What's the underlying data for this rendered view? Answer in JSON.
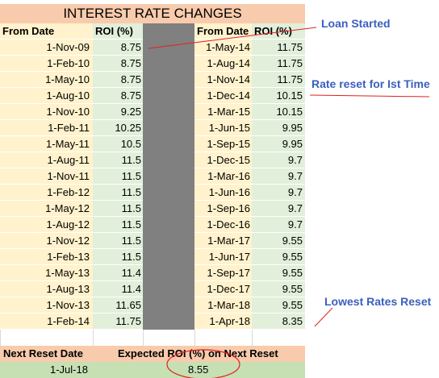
{
  "title": "INTEREST RATE CHANGES",
  "headers": {
    "from_date": "From Date",
    "roi": "ROI (%)"
  },
  "left_rows": [
    {
      "date": "1-Nov-09",
      "roi": "8.75"
    },
    {
      "date": "1-Feb-10",
      "roi": "8.75"
    },
    {
      "date": "1-May-10",
      "roi": "8.75"
    },
    {
      "date": "1-Aug-10",
      "roi": "8.75"
    },
    {
      "date": "1-Nov-10",
      "roi": "9.25"
    },
    {
      "date": "1-Feb-11",
      "roi": "10.25"
    },
    {
      "date": "1-May-11",
      "roi": "10.5"
    },
    {
      "date": "1-Aug-11",
      "roi": "11.5"
    },
    {
      "date": "1-Nov-11",
      "roi": "11.5"
    },
    {
      "date": "1-Feb-12",
      "roi": "11.5"
    },
    {
      "date": "1-May-12",
      "roi": "11.5"
    },
    {
      "date": "1-Aug-12",
      "roi": "11.5"
    },
    {
      "date": "1-Nov-12",
      "roi": "11.5"
    },
    {
      "date": "1-Feb-13",
      "roi": "11.5"
    },
    {
      "date": "1-May-13",
      "roi": "11.4"
    },
    {
      "date": "1-Aug-13",
      "roi": "11.4"
    },
    {
      "date": "1-Nov-13",
      "roi": "11.65"
    },
    {
      "date": "1-Feb-14",
      "roi": "11.75"
    }
  ],
  "right_rows": [
    {
      "date": "1-May-14",
      "roi": "11.75"
    },
    {
      "date": "1-Aug-14",
      "roi": "11.75"
    },
    {
      "date": "1-Nov-14",
      "roi": "11.75"
    },
    {
      "date": "1-Dec-14",
      "roi": "10.15"
    },
    {
      "date": "1-Mar-15",
      "roi": "10.15"
    },
    {
      "date": "1-Jun-15",
      "roi": "9.95"
    },
    {
      "date": "1-Sep-15",
      "roi": "9.95"
    },
    {
      "date": "1-Dec-15",
      "roi": "9.7"
    },
    {
      "date": "1-Mar-16",
      "roi": "9.7"
    },
    {
      "date": "1-Jun-16",
      "roi": "9.7"
    },
    {
      "date": "1-Sep-16",
      "roi": "9.7"
    },
    {
      "date": "1-Dec-16",
      "roi": "9.7"
    },
    {
      "date": "1-Mar-17",
      "roi": "9.55"
    },
    {
      "date": "1-Jun-17",
      "roi": "9.55"
    },
    {
      "date": "1-Sep-17",
      "roi": "9.55"
    },
    {
      "date": "1-Dec-17",
      "roi": "9.55"
    },
    {
      "date": "1-Mar-18",
      "roi": "9.55"
    },
    {
      "date": "1-Apr-18",
      "roi": "8.35"
    }
  ],
  "footer": {
    "next_reset_label": "Next Reset Date",
    "expected_roi_label": "Expected ROI (%) on Next Reset",
    "next_reset_date": "1-Jul-18",
    "expected_roi": "8.55"
  },
  "annotations": {
    "loan_started": "Loan Started",
    "rate_reset": "Rate reset for Ist Time",
    "lowest_reset": "Lowest Rates Reset"
  },
  "colors": {
    "header_fill": "#f8cbad",
    "date_fill": "#fff2cc",
    "roi_fill": "#e2efda",
    "separator_fill": "#808080",
    "footer_value_fill": "#c6e0b4",
    "annotation_text": "#3a5fbf",
    "annotation_line": "#e02020"
  }
}
